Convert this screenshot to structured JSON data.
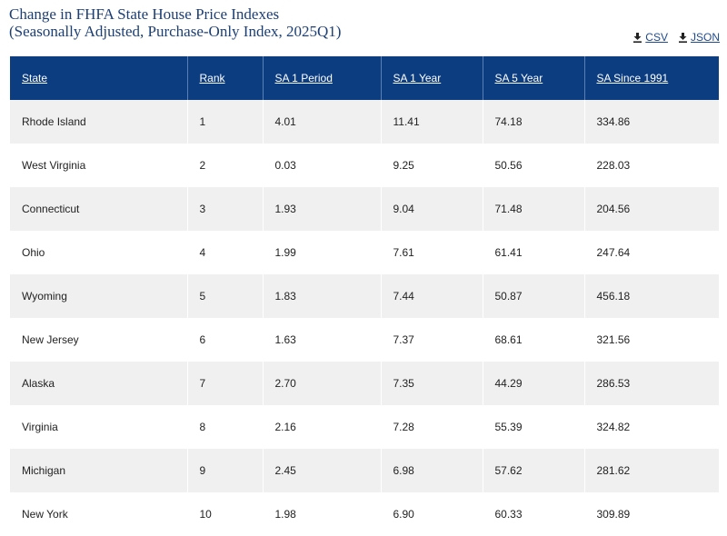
{
  "header": {
    "title_line1": "Change in FHFA State House Price Indexes",
    "title_line2": "(Seasonally Adjusted, Purchase-Only Index, 2025Q1)"
  },
  "downloads": {
    "csv_label": "CSV",
    "json_label": "JSON",
    "icon": "download-icon"
  },
  "table": {
    "columns": [
      "State",
      "Rank",
      "SA 1 Period",
      "SA 1 Year",
      "SA 5 Year",
      "SA Since 1991"
    ],
    "rows": [
      [
        "Rhode Island",
        "1",
        "4.01",
        "11.41",
        "74.18",
        "334.86"
      ],
      [
        "West Virginia",
        "2",
        "0.03",
        "9.25",
        "50.56",
        "228.03"
      ],
      [
        "Connecticut",
        "3",
        "1.93",
        "9.04",
        "71.48",
        "204.56"
      ],
      [
        "Ohio",
        "4",
        "1.99",
        "7.61",
        "61.41",
        "247.64"
      ],
      [
        "Wyoming",
        "5",
        "1.83",
        "7.44",
        "50.87",
        "456.18"
      ],
      [
        "New Jersey",
        "6",
        "1.63",
        "7.37",
        "68.61",
        "321.56"
      ],
      [
        "Alaska",
        "7",
        "2.70",
        "7.35",
        "44.29",
        "286.53"
      ],
      [
        "Virginia",
        "8",
        "2.16",
        "7.28",
        "55.39",
        "324.82"
      ],
      [
        "Michigan",
        "9",
        "2.45",
        "6.98",
        "57.62",
        "281.62"
      ],
      [
        "New York",
        "10",
        "1.98",
        "6.90",
        "60.33",
        "309.89"
      ]
    ]
  },
  "colors": {
    "header_bg": "#0c3d80",
    "title": "#1c3f74",
    "link": "#1f4b8e",
    "row_alt": "#f0f0f0"
  }
}
